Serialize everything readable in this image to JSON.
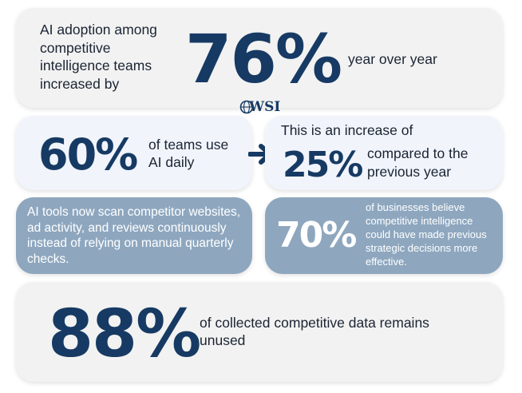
{
  "card1": {
    "lead": "AI adoption among competitive intelligence teams increased by",
    "stat": "76%",
    "tail": "year over year"
  },
  "logo": {
    "text": "WSI"
  },
  "card2": {
    "stat": "60%",
    "desc": "of teams use AI daily"
  },
  "card3": {
    "lead": "This is an increase of",
    "stat": "25%",
    "desc": "compared to the previous year"
  },
  "card4": {
    "text": "AI tools now scan competitor websites, ad activity, and reviews continuously instead of relying on manual quarterly checks."
  },
  "card5": {
    "stat": "70%",
    "desc": "of businesses believe competitive intelligence could have made previous strategic decisions more effective."
  },
  "card6": {
    "stat": "88%",
    "desc": "of collected competitive data remains unused"
  },
  "colors": {
    "stat_blue": "#163a63",
    "card_blue": "#8ea7bf",
    "card_light": "#f2f2f2",
    "card_pale": "#f1f4fb"
  }
}
